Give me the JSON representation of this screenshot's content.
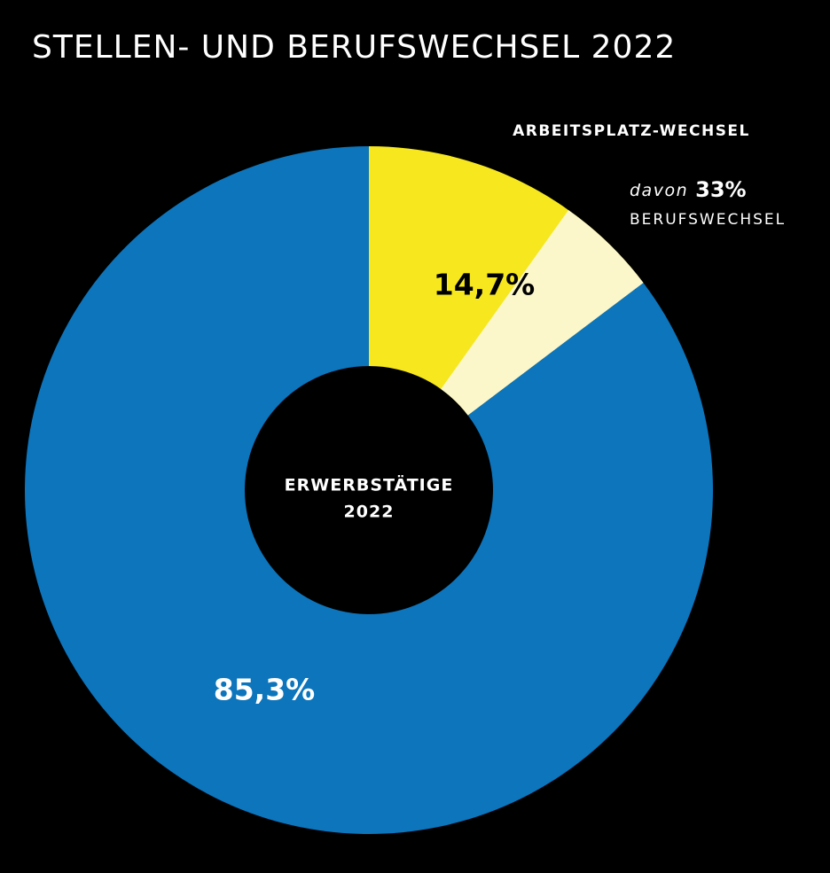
{
  "chart_data": {
    "type": "donut",
    "title": "STELLEN- UND BERUFSWECHSEL 2022",
    "center_label": [
      "ERWERBSTÄTIGE",
      "2022"
    ],
    "segments": [
      {
        "name": "ARBEITSPLATZ-WECHSEL",
        "value": 14.7,
        "value_label": "14,7%",
        "color": "#f6e71e",
        "part": {
          "prefix": "davon",
          "value": 33,
          "value_label": "33%",
          "name": "BERUFSWECHSEL",
          "color": "#fbf7cb"
        }
      },
      {
        "name": null,
        "value": 85.3,
        "value_label": "85,3%",
        "color": "#0c75bc"
      }
    ]
  }
}
